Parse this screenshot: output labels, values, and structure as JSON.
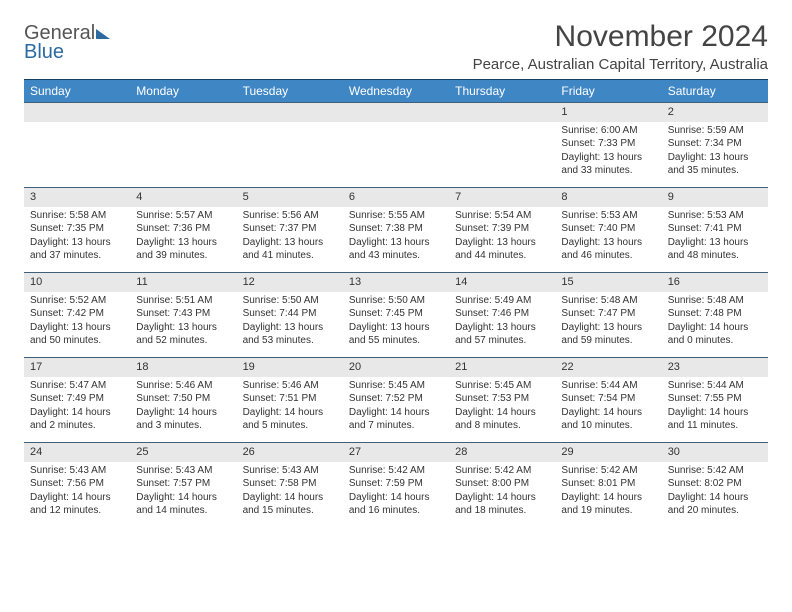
{
  "logo": {
    "line1": "General",
    "line2": "Blue"
  },
  "title": "November 2024",
  "location": "Pearce, Australian Capital Territory, Australia",
  "style": {
    "header_bg": "#3f86c5",
    "header_text": "#ffffff",
    "daynum_bg": "#e8e8e8",
    "border_color": "#3f5f7a",
    "body_font_size": 10,
    "title_font_size": 30,
    "location_font_size": 15
  },
  "weekdays": [
    "Sunday",
    "Monday",
    "Tuesday",
    "Wednesday",
    "Thursday",
    "Friday",
    "Saturday"
  ],
  "weeks": [
    [
      null,
      null,
      null,
      null,
      null,
      {
        "d": "1",
        "sr": "6:00 AM",
        "ss": "7:33 PM",
        "dl": "13 hours and 33 minutes."
      },
      {
        "d": "2",
        "sr": "5:59 AM",
        "ss": "7:34 PM",
        "dl": "13 hours and 35 minutes."
      }
    ],
    [
      {
        "d": "3",
        "sr": "5:58 AM",
        "ss": "7:35 PM",
        "dl": "13 hours and 37 minutes."
      },
      {
        "d": "4",
        "sr": "5:57 AM",
        "ss": "7:36 PM",
        "dl": "13 hours and 39 minutes."
      },
      {
        "d": "5",
        "sr": "5:56 AM",
        "ss": "7:37 PM",
        "dl": "13 hours and 41 minutes."
      },
      {
        "d": "6",
        "sr": "5:55 AM",
        "ss": "7:38 PM",
        "dl": "13 hours and 43 minutes."
      },
      {
        "d": "7",
        "sr": "5:54 AM",
        "ss": "7:39 PM",
        "dl": "13 hours and 44 minutes."
      },
      {
        "d": "8",
        "sr": "5:53 AM",
        "ss": "7:40 PM",
        "dl": "13 hours and 46 minutes."
      },
      {
        "d": "9",
        "sr": "5:53 AM",
        "ss": "7:41 PM",
        "dl": "13 hours and 48 minutes."
      }
    ],
    [
      {
        "d": "10",
        "sr": "5:52 AM",
        "ss": "7:42 PM",
        "dl": "13 hours and 50 minutes."
      },
      {
        "d": "11",
        "sr": "5:51 AM",
        "ss": "7:43 PM",
        "dl": "13 hours and 52 minutes."
      },
      {
        "d": "12",
        "sr": "5:50 AM",
        "ss": "7:44 PM",
        "dl": "13 hours and 53 minutes."
      },
      {
        "d": "13",
        "sr": "5:50 AM",
        "ss": "7:45 PM",
        "dl": "13 hours and 55 minutes."
      },
      {
        "d": "14",
        "sr": "5:49 AM",
        "ss": "7:46 PM",
        "dl": "13 hours and 57 minutes."
      },
      {
        "d": "15",
        "sr": "5:48 AM",
        "ss": "7:47 PM",
        "dl": "13 hours and 59 minutes."
      },
      {
        "d": "16",
        "sr": "5:48 AM",
        "ss": "7:48 PM",
        "dl": "14 hours and 0 minutes."
      }
    ],
    [
      {
        "d": "17",
        "sr": "5:47 AM",
        "ss": "7:49 PM",
        "dl": "14 hours and 2 minutes."
      },
      {
        "d": "18",
        "sr": "5:46 AM",
        "ss": "7:50 PM",
        "dl": "14 hours and 3 minutes."
      },
      {
        "d": "19",
        "sr": "5:46 AM",
        "ss": "7:51 PM",
        "dl": "14 hours and 5 minutes."
      },
      {
        "d": "20",
        "sr": "5:45 AM",
        "ss": "7:52 PM",
        "dl": "14 hours and 7 minutes."
      },
      {
        "d": "21",
        "sr": "5:45 AM",
        "ss": "7:53 PM",
        "dl": "14 hours and 8 minutes."
      },
      {
        "d": "22",
        "sr": "5:44 AM",
        "ss": "7:54 PM",
        "dl": "14 hours and 10 minutes."
      },
      {
        "d": "23",
        "sr": "5:44 AM",
        "ss": "7:55 PM",
        "dl": "14 hours and 11 minutes."
      }
    ],
    [
      {
        "d": "24",
        "sr": "5:43 AM",
        "ss": "7:56 PM",
        "dl": "14 hours and 12 minutes."
      },
      {
        "d": "25",
        "sr": "5:43 AM",
        "ss": "7:57 PM",
        "dl": "14 hours and 14 minutes."
      },
      {
        "d": "26",
        "sr": "5:43 AM",
        "ss": "7:58 PM",
        "dl": "14 hours and 15 minutes."
      },
      {
        "d": "27",
        "sr": "5:42 AM",
        "ss": "7:59 PM",
        "dl": "14 hours and 16 minutes."
      },
      {
        "d": "28",
        "sr": "5:42 AM",
        "ss": "8:00 PM",
        "dl": "14 hours and 18 minutes."
      },
      {
        "d": "29",
        "sr": "5:42 AM",
        "ss": "8:01 PM",
        "dl": "14 hours and 19 minutes."
      },
      {
        "d": "30",
        "sr": "5:42 AM",
        "ss": "8:02 PM",
        "dl": "14 hours and 20 minutes."
      }
    ]
  ],
  "labels": {
    "sunrise": "Sunrise:",
    "sunset": "Sunset:",
    "daylight": "Daylight:"
  }
}
